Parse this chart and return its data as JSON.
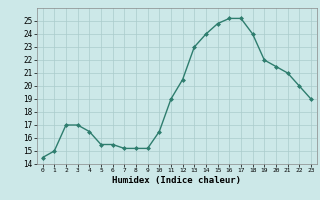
{
  "x": [
    0,
    1,
    2,
    3,
    4,
    5,
    6,
    7,
    8,
    9,
    10,
    11,
    12,
    13,
    14,
    15,
    16,
    17,
    18,
    19,
    20,
    21,
    22,
    23
  ],
  "y": [
    14.5,
    15.0,
    17.0,
    17.0,
    16.5,
    15.5,
    15.5,
    15.2,
    15.2,
    15.2,
    16.5,
    19.0,
    20.5,
    23.0,
    24.0,
    24.8,
    25.2,
    25.2,
    24.0,
    22.0,
    21.5,
    21.0,
    20.0,
    19.0
  ],
  "xlabel": "Humidex (Indice chaleur)",
  "xlim": [
    -0.5,
    23.5
  ],
  "ylim": [
    14,
    26
  ],
  "yticks": [
    14,
    15,
    16,
    17,
    18,
    19,
    20,
    21,
    22,
    23,
    24,
    25
  ],
  "xticks": [
    0,
    1,
    2,
    3,
    4,
    5,
    6,
    7,
    8,
    9,
    10,
    11,
    12,
    13,
    14,
    15,
    16,
    17,
    18,
    19,
    20,
    21,
    22,
    23
  ],
  "line_color": "#2e7d6e",
  "marker_color": "#2e7d6e",
  "bg_color": "#cce8e8",
  "grid_color": "#aacccc",
  "marker": "D",
  "marker_size": 2.0,
  "line_width": 1.0
}
